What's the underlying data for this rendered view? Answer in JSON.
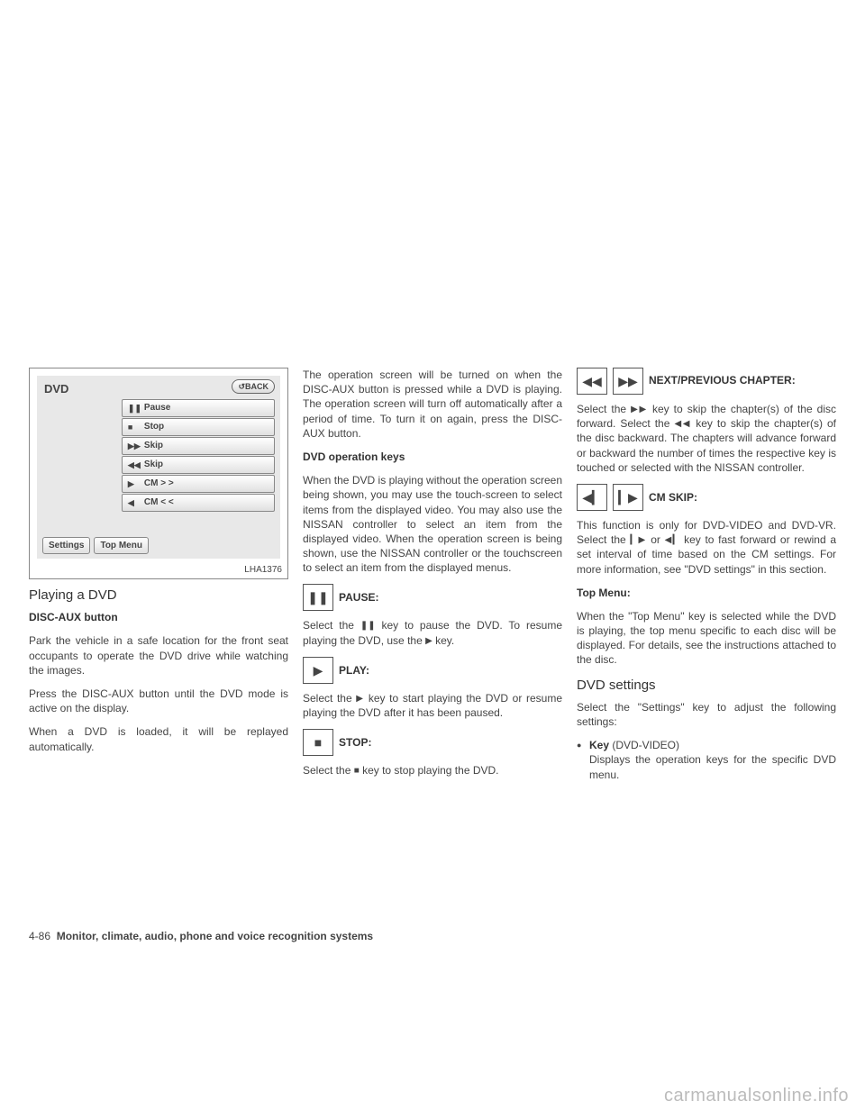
{
  "figure": {
    "title": "DVD",
    "back": "↺BACK",
    "items": [
      {
        "glyph": "❚❚",
        "label": "Pause"
      },
      {
        "glyph": "■",
        "label": "Stop"
      },
      {
        "glyph": "▶▶",
        "label": "Skip"
      },
      {
        "glyph": "◀◀",
        "label": "Skip"
      },
      {
        "glyph": "▶",
        "label": "CM > >"
      },
      {
        "glyph": "◀",
        "label": "CM < <"
      }
    ],
    "bottom": [
      "Settings",
      "Top Menu"
    ],
    "code": "LHA1376"
  },
  "col1": {
    "h": "Playing a DVD",
    "sub1": "DISC-AUX button",
    "p1": "Park the vehicle in a safe location for the front seat occupants to operate the DVD drive while watching the images.",
    "p2": "Press the DISC-AUX button until the DVD mode is active on the display.",
    "p3": "When a DVD is loaded, it will be replayed automatically."
  },
  "col2": {
    "p1": "The operation screen will be turned on when the DISC-AUX button is pressed while a DVD is playing. The operation screen will turn off automatically after a period of time. To turn it on again, press the DISC-AUX button.",
    "sub1": "DVD operation keys",
    "p2": "When the DVD is playing without the operation screen being shown, you may use the touch-screen to select items from the displayed video. You may also use the NISSAN controller to select an item from the displayed video. When the operation screen is being shown, use the NISSAN controller or the touchscreen to select an item from the displayed menus.",
    "pause_label": "PAUSE:",
    "pause_glyph": "❚❚",
    "pause_p_a": "Select the ",
    "pause_p_b": " key to pause the DVD. To resume playing the DVD, use the ",
    "pause_p_c": " key.",
    "play_label": "PLAY:",
    "play_glyph": "▶",
    "play_p_a": "Select the ",
    "play_p_b": " key to start playing the DVD or resume playing the DVD after it has been paused.",
    "stop_label": "STOP:",
    "stop_glyph": "■",
    "stop_p_a": "Select the ",
    "stop_p_b": " key to stop playing the DVD."
  },
  "col3": {
    "np_glyph1": "◀◀",
    "np_glyph2": "▶▶",
    "np_label": "NEXT/PREVIOUS CHAPTER:",
    "np_p_a": "Select the ",
    "np_p_b": " key to skip the chapter(s) of the disc forward. Select the ",
    "np_p_c": " key to skip the chapter(s) of the disc backward. The chapters will advance forward or backward the number of times the respective key is touched or selected with the NISSAN controller.",
    "cm_glyph1": "◀▎",
    "cm_glyph2": "▎▶",
    "cm_label": "CM SKIP:",
    "cm_p_a": "This function is only for DVD-VIDEO and DVD-VR. Select the ",
    "cm_p_b": " or ",
    "cm_p_c": " key to fast forward or rewind a set interval of time based on the CM settings. For more information, see \"DVD settings\" in this section.",
    "tm_label": "Top Menu:",
    "tm_p": "When the \"Top Menu\" key is selected while the DVD is playing, the top menu specific to each disc will be displayed. For details, see the instructions attached to the disc.",
    "ds_h": "DVD settings",
    "ds_p": "Select the \"Settings\" key to adjust the following settings:",
    "bullet1_bold": "Key",
    "bullet1_rest": " (DVD-VIDEO)",
    "bullet1_line2": "Displays the operation keys for the specific DVD menu."
  },
  "footer": {
    "page": "4-86",
    "section": "Monitor, climate, audio, phone and voice recognition systems"
  },
  "watermark": "carmanualsonline.info"
}
